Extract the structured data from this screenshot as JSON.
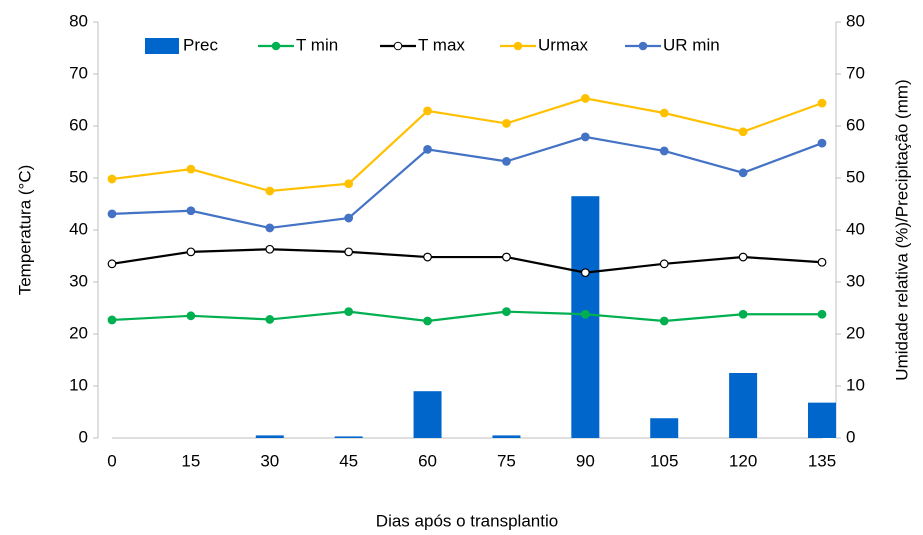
{
  "chart_data": {
    "type": "combo",
    "xlabel": "Dias após o transplantio",
    "ylabel": "Temperatura (°C)",
    "y2label": "Umidade relativa (%)/Precipitação (mm)",
    "categories": [
      "0",
      "15",
      "30",
      "45",
      "60",
      "75",
      "90",
      "105",
      "120",
      "135"
    ],
    "ylim": [
      0,
      80
    ],
    "yticks": [
      0,
      10,
      20,
      30,
      40,
      50,
      60,
      70,
      80
    ],
    "y2lim": [
      0,
      80
    ],
    "y2ticks": [
      0,
      10,
      20,
      30,
      40,
      50,
      60,
      70,
      80
    ],
    "legend": "top",
    "series": [
      {
        "name": "Prec",
        "kind": "bar",
        "axis": "y2",
        "color": "#0066cc",
        "values": [
          0,
          0,
          0.5,
          0.3,
          9,
          0.5,
          46.5,
          3.8,
          12.5,
          6.8
        ]
      },
      {
        "name": "T min",
        "kind": "line",
        "color": "#00b050",
        "values": [
          22.7,
          23.5,
          22.8,
          24.3,
          22.5,
          24.3,
          23.8,
          22.5,
          23.8,
          23.8
        ]
      },
      {
        "name": "T max",
        "kind": "line",
        "color": "#000000",
        "marker_fill": "#ffffff",
        "values": [
          33.5,
          35.8,
          36.3,
          35.8,
          34.8,
          34.8,
          31.8,
          33.5,
          34.8,
          33.8
        ]
      },
      {
        "name": "Urmax",
        "kind": "line",
        "axis": "y2",
        "color": "#ffc000",
        "values": [
          49.8,
          51.7,
          47.5,
          48.9,
          62.9,
          60.5,
          65.3,
          62.5,
          58.9,
          64.4
        ]
      },
      {
        "name": "UR min",
        "kind": "line",
        "axis": "y2",
        "color": "#4472c4",
        "values": [
          43.1,
          43.7,
          40.4,
          42.3,
          55.5,
          53.2,
          57.9,
          55.2,
          51.0,
          56.7
        ]
      }
    ]
  }
}
